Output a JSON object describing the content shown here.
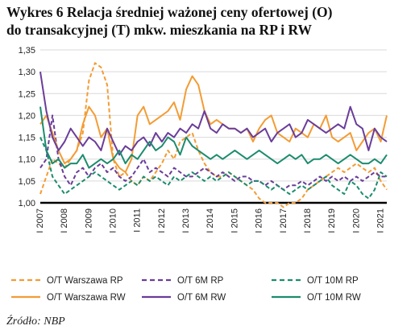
{
  "title": {
    "line1": "Wykres 6 Relacja średniej ważonej ceny ofertowej (O)",
    "line2": "do transakcyjnej (T) mkw. mieszkania na RP i RW"
  },
  "source": "Źródło: NBP",
  "colors": {
    "orange": "#F39C34",
    "purple": "#6A3D9A",
    "teal": "#1C8C6E",
    "grid": "#D9D9D9",
    "baseline": "#000000"
  },
  "chart_data": {
    "type": "line",
    "ylim": [
      1.0,
      1.35
    ],
    "yticks": [
      "1,35",
      "1,30",
      "1,25",
      "1,20",
      "1,15",
      "1,10",
      "1,05",
      "1,00"
    ],
    "xlim": [
      2007,
      2021.25
    ],
    "xticks": [
      "I 2007",
      "I 2008",
      "I 2009",
      "I 2010",
      "I 2011",
      "I 2012",
      "I 2013",
      "I 2014",
      "I 2015",
      "I 2016",
      "I 2017",
      "I 2018",
      "I 2019",
      "I 2020",
      "I 2021"
    ],
    "grid": "horizontal",
    "legend_position": "bottom",
    "series": [
      {
        "name": "O/T Warszawa RP",
        "color": "#F39C34",
        "dash": "dashed",
        "x": [
          2007,
          2007.25,
          2007.5,
          2007.75,
          2008,
          2008.25,
          2008.5,
          2008.75,
          2009,
          2009.25,
          2009.5,
          2009.75,
          2010,
          2010.25,
          2010.5,
          2010.75,
          2011,
          2011.25,
          2011.5,
          2011.75,
          2012,
          2012.25,
          2012.5,
          2012.75,
          2013,
          2013.25,
          2013.5,
          2013.75,
          2014,
          2014.25,
          2014.5,
          2014.75,
          2015,
          2015.25,
          2015.5,
          2015.75,
          2016,
          2016.25,
          2016.5,
          2016.75,
          2017,
          2017.25,
          2017.5,
          2017.75,
          2018,
          2018.25,
          2018.5,
          2018.75,
          2019,
          2019.25,
          2019.5,
          2019.75,
          2020,
          2020.25,
          2020.5,
          2020.75,
          2021,
          2021.25
        ],
        "values": [
          1.02,
          1.06,
          1.1,
          1.09,
          1.08,
          1.1,
          1.12,
          1.16,
          1.28,
          1.32,
          1.31,
          1.27,
          1.1,
          1.06,
          1.07,
          1.05,
          1.04,
          1.06,
          1.05,
          1.07,
          1.09,
          1.12,
          1.1,
          1.14,
          1.15,
          1.16,
          1.12,
          1.09,
          1.07,
          1.06,
          1.06,
          1.07,
          1.06,
          1.05,
          1.04,
          1.03,
          1.01,
          1.0,
          1.0,
          1.0,
          0.99,
          1.0,
          1.0,
          1.01,
          1.03,
          1.04,
          1.05,
          1.06,
          1.07,
          1.08,
          1.07,
          1.08,
          1.09,
          1.08,
          1.07,
          1.08,
          1.05,
          1.03
        ]
      },
      {
        "name": "O/T 6M RP",
        "color": "#6A3D9A",
        "dash": "dashed",
        "x": [
          2007,
          2007.25,
          2007.5,
          2007.75,
          2008,
          2008.25,
          2008.5,
          2008.75,
          2009,
          2009.25,
          2009.5,
          2009.75,
          2010,
          2010.25,
          2010.5,
          2010.75,
          2011,
          2011.25,
          2011.5,
          2011.75,
          2012,
          2012.25,
          2012.5,
          2012.75,
          2013,
          2013.25,
          2013.5,
          2013.75,
          2014,
          2014.25,
          2014.5,
          2014.75,
          2015,
          2015.25,
          2015.5,
          2015.75,
          2016,
          2016.25,
          2016.5,
          2016.75,
          2017,
          2017.25,
          2017.5,
          2017.75,
          2018,
          2018.25,
          2018.5,
          2018.75,
          2019,
          2019.25,
          2019.5,
          2019.75,
          2020,
          2020.25,
          2020.5,
          2020.75,
          2021,
          2021.25
        ],
        "values": [
          1.08,
          1.1,
          1.2,
          1.1,
          1.06,
          1.04,
          1.07,
          1.08,
          1.06,
          1.08,
          1.09,
          1.07,
          1.08,
          1.06,
          1.05,
          1.06,
          1.08,
          1.1,
          1.07,
          1.08,
          1.07,
          1.06,
          1.08,
          1.07,
          1.06,
          1.06,
          1.07,
          1.08,
          1.07,
          1.06,
          1.07,
          1.06,
          1.05,
          1.06,
          1.06,
          1.05,
          1.05,
          1.04,
          1.05,
          1.04,
          1.03,
          1.04,
          1.04,
          1.05,
          1.04,
          1.05,
          1.06,
          1.05,
          1.06,
          1.05,
          1.06,
          1.05,
          1.06,
          1.05,
          1.06,
          1.07,
          1.06,
          1.06
        ]
      },
      {
        "name": "O/T 10M RP",
        "color": "#1C8C6E",
        "dash": "dashed",
        "x": [
          2007,
          2007.25,
          2007.5,
          2007.75,
          2008,
          2008.25,
          2008.5,
          2008.75,
          2009,
          2009.25,
          2009.5,
          2009.75,
          2010,
          2010.25,
          2010.5,
          2010.75,
          2011,
          2011.25,
          2011.5,
          2011.75,
          2012,
          2012.25,
          2012.5,
          2012.75,
          2013,
          2013.25,
          2013.5,
          2013.75,
          2014,
          2014.25,
          2014.5,
          2014.75,
          2015,
          2015.25,
          2015.5,
          2015.75,
          2016,
          2016.25,
          2016.5,
          2016.75,
          2017,
          2017.25,
          2017.5,
          2017.75,
          2018,
          2018.25,
          2018.5,
          2018.75,
          2019,
          2019.25,
          2019.5,
          2019.75,
          2020,
          2020.25,
          2020.5,
          2020.75,
          2021,
          2021.25
        ],
        "values": [
          1.15,
          1.12,
          1.06,
          1.04,
          1.02,
          1.03,
          1.04,
          1.05,
          1.06,
          1.07,
          1.06,
          1.05,
          1.04,
          1.03,
          1.04,
          1.05,
          1.04,
          1.06,
          1.05,
          1.06,
          1.05,
          1.04,
          1.06,
          1.05,
          1.06,
          1.07,
          1.06,
          1.05,
          1.06,
          1.05,
          1.06,
          1.07,
          1.06,
          1.05,
          1.04,
          1.05,
          1.05,
          1.04,
          1.03,
          1.04,
          1.03,
          1.02,
          1.03,
          1.04,
          1.03,
          1.04,
          1.05,
          1.06,
          1.04,
          1.03,
          1.02,
          1.05,
          1.04,
          1.02,
          1.01,
          1.03,
          1.07,
          1.06
        ]
      },
      {
        "name": "O/T Warszawa RW",
        "color": "#F39C34",
        "dash": "solid",
        "x": [
          2007,
          2007.25,
          2007.5,
          2007.75,
          2008,
          2008.25,
          2008.5,
          2008.75,
          2009,
          2009.25,
          2009.5,
          2009.75,
          2010,
          2010.25,
          2010.5,
          2010.75,
          2011,
          2011.25,
          2011.5,
          2011.75,
          2012,
          2012.25,
          2012.5,
          2012.75,
          2013,
          2013.25,
          2013.5,
          2013.75,
          2014,
          2014.25,
          2014.5,
          2014.75,
          2015,
          2015.25,
          2015.5,
          2015.75,
          2016,
          2016.25,
          2016.5,
          2016.75,
          2017,
          2017.25,
          2017.5,
          2017.75,
          2018,
          2018.25,
          2018.5,
          2018.75,
          2019,
          2019.25,
          2019.5,
          2019.75,
          2020,
          2020.25,
          2020.5,
          2020.75,
          2021,
          2021.25
        ],
        "values": [
          1.18,
          1.2,
          1.16,
          1.12,
          1.09,
          1.1,
          1.12,
          1.18,
          1.22,
          1.2,
          1.15,
          1.17,
          1.1,
          1.08,
          1.07,
          1.1,
          1.2,
          1.22,
          1.18,
          1.19,
          1.2,
          1.21,
          1.23,
          1.19,
          1.26,
          1.29,
          1.27,
          1.21,
          1.18,
          1.19,
          1.18,
          1.17,
          1.17,
          1.16,
          1.17,
          1.14,
          1.17,
          1.19,
          1.2,
          1.16,
          1.15,
          1.14,
          1.17,
          1.16,
          1.15,
          1.18,
          1.17,
          1.2,
          1.15,
          1.14,
          1.15,
          1.16,
          1.12,
          1.14,
          1.16,
          1.17,
          1.14,
          1.2
        ]
      },
      {
        "name": "O/T 6M RW",
        "color": "#6A3D9A",
        "dash": "solid",
        "x": [
          2007,
          2007.25,
          2007.5,
          2007.75,
          2008,
          2008.25,
          2008.5,
          2008.75,
          2009,
          2009.25,
          2009.5,
          2009.75,
          2010,
          2010.25,
          2010.5,
          2010.75,
          2011,
          2011.25,
          2011.5,
          2011.75,
          2012,
          2012.25,
          2012.5,
          2012.75,
          2013,
          2013.25,
          2013.5,
          2013.75,
          2014,
          2014.25,
          2014.5,
          2014.75,
          2015,
          2015.25,
          2015.5,
          2015.75,
          2016,
          2016.25,
          2016.5,
          2016.75,
          2017,
          2017.25,
          2017.5,
          2017.75,
          2018,
          2018.25,
          2018.5,
          2018.75,
          2019,
          2019.25,
          2019.5,
          2019.75,
          2020,
          2020.25,
          2020.5,
          2020.75,
          2021,
          2021.25
        ],
        "values": [
          1.3,
          1.21,
          1.15,
          1.12,
          1.14,
          1.17,
          1.15,
          1.13,
          1.15,
          1.14,
          1.12,
          1.17,
          1.14,
          1.11,
          1.13,
          1.12,
          1.14,
          1.15,
          1.13,
          1.16,
          1.14,
          1.16,
          1.15,
          1.17,
          1.16,
          1.18,
          1.17,
          1.21,
          1.17,
          1.16,
          1.18,
          1.17,
          1.17,
          1.16,
          1.17,
          1.15,
          1.16,
          1.17,
          1.14,
          1.16,
          1.17,
          1.18,
          1.15,
          1.16,
          1.19,
          1.18,
          1.17,
          1.16,
          1.17,
          1.18,
          1.17,
          1.22,
          1.18,
          1.17,
          1.12,
          1.17,
          1.15,
          1.14
        ]
      },
      {
        "name": "O/T 10M RW",
        "color": "#1C8C6E",
        "dash": "solid",
        "x": [
          2007,
          2007.25,
          2007.5,
          2007.75,
          2008,
          2008.25,
          2008.5,
          2008.75,
          2009,
          2009.25,
          2009.5,
          2009.75,
          2010,
          2010.25,
          2010.5,
          2010.75,
          2011,
          2011.25,
          2011.5,
          2011.75,
          2012,
          2012.25,
          2012.5,
          2012.75,
          2013,
          2013.25,
          2013.5,
          2013.75,
          2014,
          2014.25,
          2014.5,
          2014.75,
          2015,
          2015.25,
          2015.5,
          2015.75,
          2016,
          2016.25,
          2016.5,
          2016.75,
          2017,
          2017.25,
          2017.5,
          2017.75,
          2018,
          2018.25,
          2018.5,
          2018.75,
          2019,
          2019.25,
          2019.5,
          2019.75,
          2020,
          2020.25,
          2020.5,
          2020.75,
          2021,
          2021.25
        ],
        "values": [
          1.22,
          1.12,
          1.09,
          1.1,
          1.08,
          1.09,
          1.09,
          1.11,
          1.08,
          1.09,
          1.1,
          1.09,
          1.1,
          1.12,
          1.09,
          1.11,
          1.1,
          1.12,
          1.14,
          1.12,
          1.13,
          1.15,
          1.14,
          1.11,
          1.15,
          1.13,
          1.12,
          1.11,
          1.1,
          1.11,
          1.1,
          1.11,
          1.12,
          1.11,
          1.1,
          1.11,
          1.12,
          1.11,
          1.1,
          1.09,
          1.1,
          1.11,
          1.1,
          1.11,
          1.09,
          1.1,
          1.1,
          1.11,
          1.1,
          1.09,
          1.1,
          1.11,
          1.1,
          1.09,
          1.09,
          1.1,
          1.09,
          1.11
        ]
      }
    ]
  }
}
